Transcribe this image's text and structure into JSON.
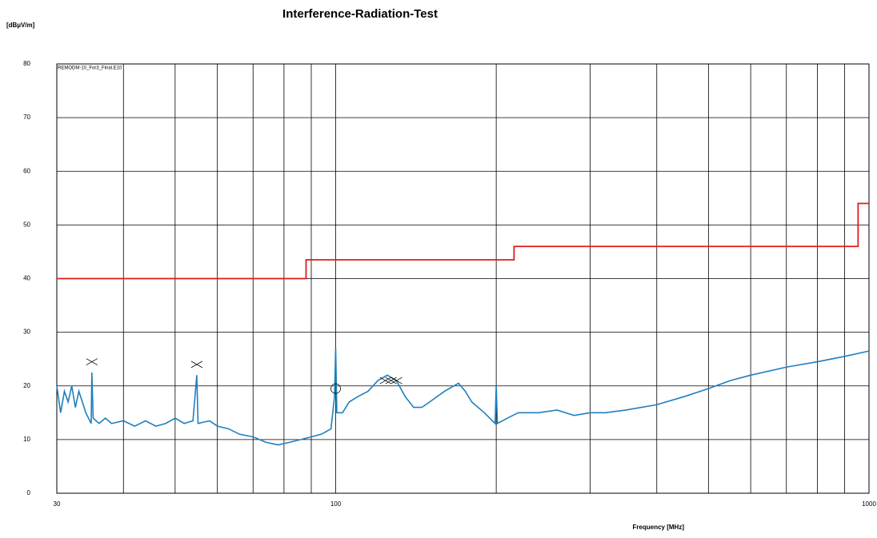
{
  "chart_data": {
    "type": "line",
    "title": "Interference-Radiation-Test",
    "y_label": "[dBµV/m]",
    "x_label": "Frequency [MHz]",
    "annotation": "REMODM-10_For3_Final.E10",
    "log_x": true,
    "grid": true,
    "xlim": [
      30,
      1000
    ],
    "xticks": [
      30,
      100,
      1000
    ],
    "xgrid": [
      40,
      50,
      60,
      70,
      80,
      90,
      200,
      300,
      400,
      500,
      600,
      700,
      800,
      900
    ],
    "ylim": [
      0,
      80
    ],
    "yticks": [
      0,
      10,
      20,
      30,
      40,
      50,
      60,
      70,
      80
    ],
    "series": [
      {
        "color": "#1f7fbf",
        "x": [
          30,
          30.5,
          31,
          31.5,
          32,
          32.5,
          33,
          33.5,
          34,
          34.8,
          34.9,
          35.1,
          36,
          37,
          38,
          40,
          42,
          44,
          46,
          48,
          50,
          52,
          54,
          54.9,
          55.2,
          58,
          60,
          63,
          66,
          70,
          74,
          78,
          82,
          86,
          90,
          94,
          98,
          99.5,
          100,
          100.5,
          103,
          106,
          110,
          115,
          120,
          125,
          130,
          135,
          140,
          145,
          150,
          160,
          170,
          175,
          180,
          190,
          199,
          200,
          201,
          210,
          220,
          240,
          260,
          280,
          300,
          320,
          350,
          400,
          450,
          500,
          550,
          600,
          700,
          800,
          900,
          1000
        ],
        "values": [
          20,
          15,
          19,
          17,
          20,
          16,
          19,
          17,
          15,
          13,
          22.5,
          14,
          13,
          14,
          13,
          13.5,
          12.5,
          13.5,
          12.5,
          13,
          14,
          13,
          13.5,
          22,
          13,
          13.5,
          12.5,
          12,
          11,
          10.5,
          9.5,
          9,
          9.5,
          10,
          10.5,
          11,
          12,
          18,
          27,
          15,
          15,
          17,
          18,
          19,
          21,
          22,
          21,
          18,
          16,
          16,
          17,
          19,
          20.5,
          19,
          17,
          15,
          13,
          20,
          13,
          14,
          15,
          15,
          15.5,
          14.5,
          15,
          15,
          15.5,
          16.5,
          18,
          19.5,
          21,
          22,
          23.5,
          24.5,
          25.5,
          26.5
        ]
      },
      {
        "color": "#e31a1c",
        "x": [
          30,
          88,
          88,
          216,
          216,
          954,
          954,
          1000
        ],
        "values": [
          40,
          40,
          43.5,
          43.5,
          46,
          46,
          54,
          54
        ]
      }
    ],
    "peak_markers": {
      "x": [
        34.9,
        54.9,
        124,
        127,
        130
      ],
      "values": [
        24.5,
        24,
        21,
        21,
        21
      ]
    },
    "quasi_peak_markers": {
      "x": [
        100
      ],
      "values": [
        19.5
      ]
    }
  }
}
